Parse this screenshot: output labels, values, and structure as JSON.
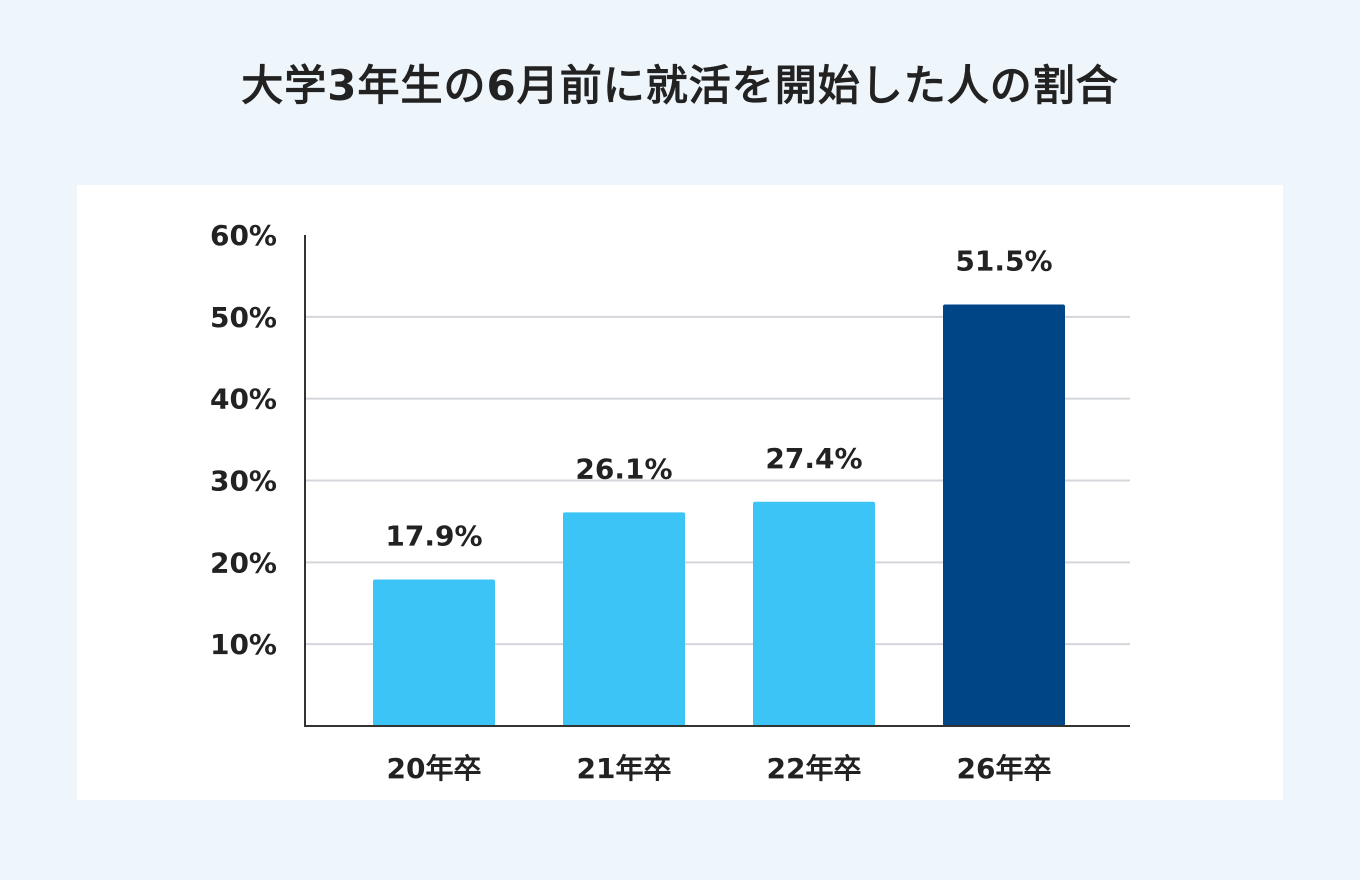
{
  "chart_data": {
    "type": "bar",
    "title": "大学3年生の6月前に就活を開始した人の割合",
    "xlabel": "",
    "ylabel": "",
    "categories": [
      "20年卒",
      "21年卒",
      "22年卒",
      "26年卒"
    ],
    "values": [
      17.9,
      26.1,
      27.4,
      51.5
    ],
    "value_labels": [
      "17.9%",
      "26.1%",
      "27.4%",
      "51.5%"
    ],
    "ylim": [
      0,
      60
    ],
    "yticks": [
      10,
      20,
      30,
      40,
      50,
      60
    ],
    "ytick_labels": [
      "10%",
      "20%",
      "30%",
      "40%",
      "50%",
      "60%"
    ],
    "grid": true,
    "legend": "none",
    "colors": {
      "bar_default": "#3cc4f7",
      "bar_highlight": "#004586",
      "grid": "#d3d7db",
      "axis": "#333333",
      "text": "#222222",
      "page_background": "#eff6fb",
      "panel_background": "#ffffff"
    },
    "highlight_index": 3
  }
}
